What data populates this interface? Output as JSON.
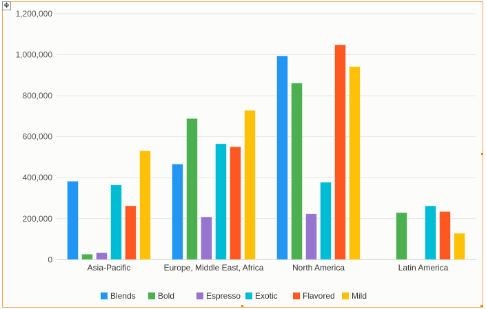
{
  "chart_data": {
    "type": "bar",
    "categories": [
      "Asia-Pacific",
      "Europe, Middle East, Africa",
      "North America",
      "Latin America"
    ],
    "series": [
      {
        "name": "Blends",
        "color": "#2196f3",
        "values": [
          383000,
          467000,
          995000,
          null
        ]
      },
      {
        "name": "Bold",
        "color": "#4caf50",
        "values": [
          27000,
          689000,
          862000,
          230000
        ]
      },
      {
        "name": "Espresso",
        "color": "#9575cd",
        "values": [
          34000,
          209000,
          224000,
          null
        ]
      },
      {
        "name": "Exotic",
        "color": "#00bcd4",
        "values": [
          365000,
          566000,
          378000,
          263000
        ]
      },
      {
        "name": "Flavored",
        "color": "#ff5722",
        "values": [
          263000,
          551000,
          1049000,
          235000
        ]
      },
      {
        "name": "Mild",
        "color": "#ffc107",
        "values": [
          532000,
          729000,
          943000,
          129000
        ]
      }
    ],
    "yticks": [
      "0",
      "200,000",
      "400,000",
      "600,000",
      "800,000",
      "1,000,000",
      "1,200,000"
    ],
    "ylim": [
      0,
      1200000
    ],
    "grid": true,
    "legend": "bottom",
    "title": "",
    "xlabel": "",
    "ylabel": ""
  },
  "ui": {
    "move_icon": "move-icon",
    "frame_color": "#f0a040"
  }
}
